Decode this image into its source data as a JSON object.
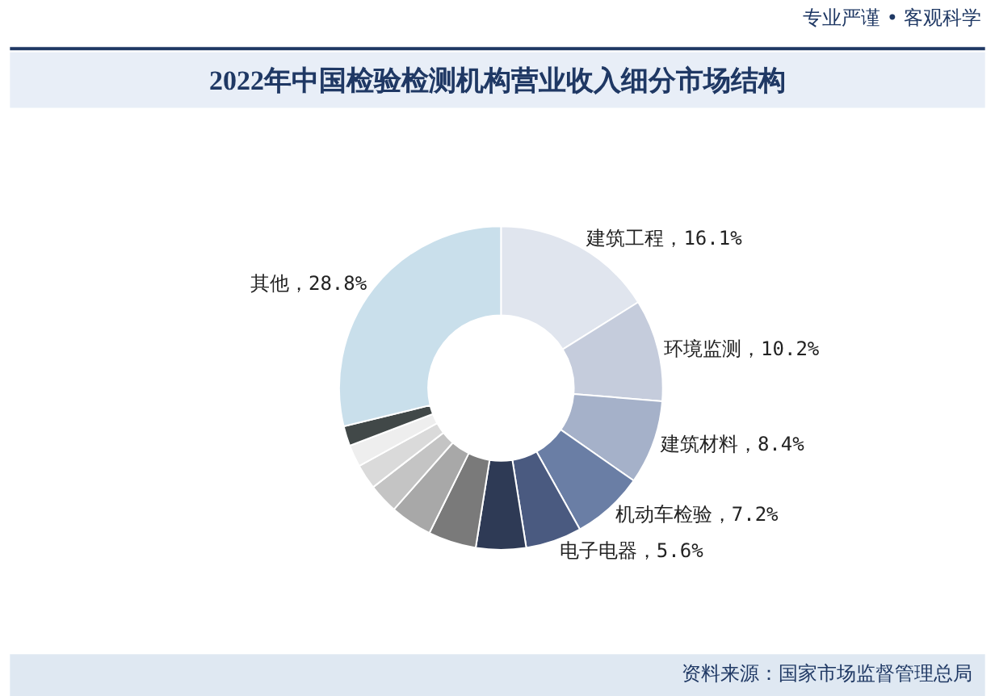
{
  "chart_data": {
    "type": "donut",
    "title": "2022年中国检验检测机构营业收入细分市场结构",
    "categories": [
      "建筑工程",
      "环境监测",
      "建筑材料",
      "机动车检验",
      "电子电器",
      null,
      null,
      null,
      null,
      null,
      null,
      null,
      "其他"
    ],
    "values": [
      16.1,
      10.2,
      8.4,
      7.2,
      5.6,
      5.0,
      4.8,
      4.2,
      3.0,
      2.5,
      2.2,
      2.0,
      28.8
    ],
    "value_labels": [
      "16.1%",
      "10.2%",
      "8.4%",
      "7.2%",
      "5.6%",
      null,
      null,
      null,
      null,
      null,
      null,
      null,
      "28.8%"
    ],
    "colors": [
      "#e0e5ee",
      "#c5ccdc",
      "#a5b1c9",
      "#6a7ea5",
      "#4a5a80",
      "#2e3a55",
      "#7a7a7a",
      "#a8a8a8",
      "#c4c4c4",
      "#dadada",
      "#eeeeee",
      "#414848",
      "#c9dfeb"
    ],
    "legend": false,
    "annotations": [
      "专业严谨 • 客观科学",
      "资料来源：国家市场监督管理总局"
    ]
  }
}
